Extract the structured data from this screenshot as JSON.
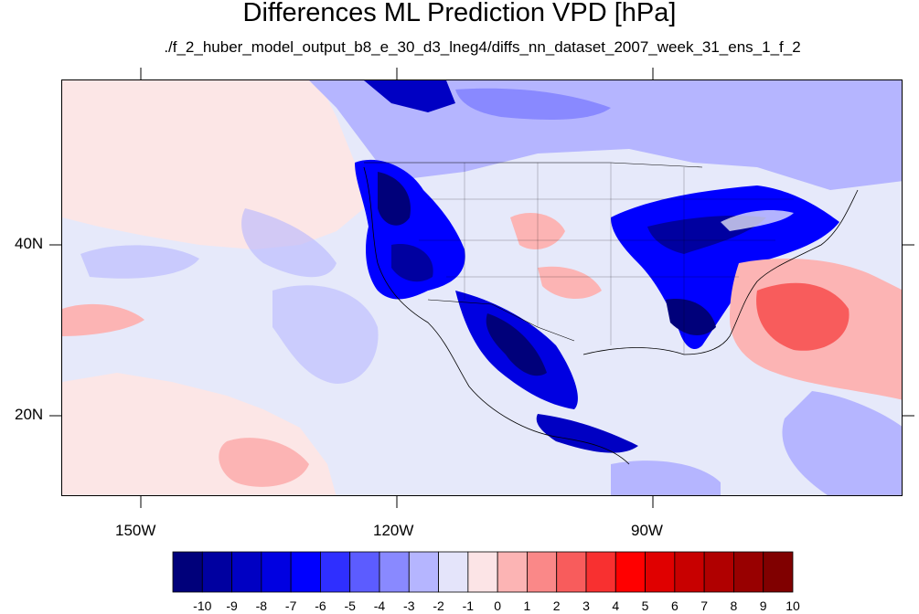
{
  "title": "Differences ML Prediction VPD [hPa]",
  "subtitle": "./f_2_huber_model_output_b8_e_30_d3_lneg4/diffs_nn_dataset_2007_week_31_ens_1_f_2",
  "lat_labels": [
    "40N",
    "20N"
  ],
  "lon_labels": [
    "150W",
    "120W",
    "90W"
  ],
  "colorbar": {
    "labels": [
      "-10",
      "-9",
      "-8",
      "-7",
      "-6",
      "-5",
      "-4",
      "-3",
      "-2",
      "-1",
      "0",
      "1",
      "2",
      "3",
      "4",
      "5",
      "6",
      "7",
      "8",
      "9",
      "10"
    ],
    "colors": [
      "#00007a",
      "#0000a0",
      "#0000c3",
      "#0000e1",
      "#0000ff",
      "#2f2fff",
      "#5c5cff",
      "#8989ff",
      "#b5b5ff",
      "#e4e4fa",
      "#fce4e6",
      "#fcb4b4",
      "#fa8888",
      "#f85c5c",
      "#f83030",
      "#ff0000",
      "#e00000",
      "#c80000",
      "#b00000",
      "#980000",
      "#800000"
    ]
  },
  "map": {
    "background_color": "#e6e9fa",
    "ocean_pink_color": "#fce6e6"
  }
}
